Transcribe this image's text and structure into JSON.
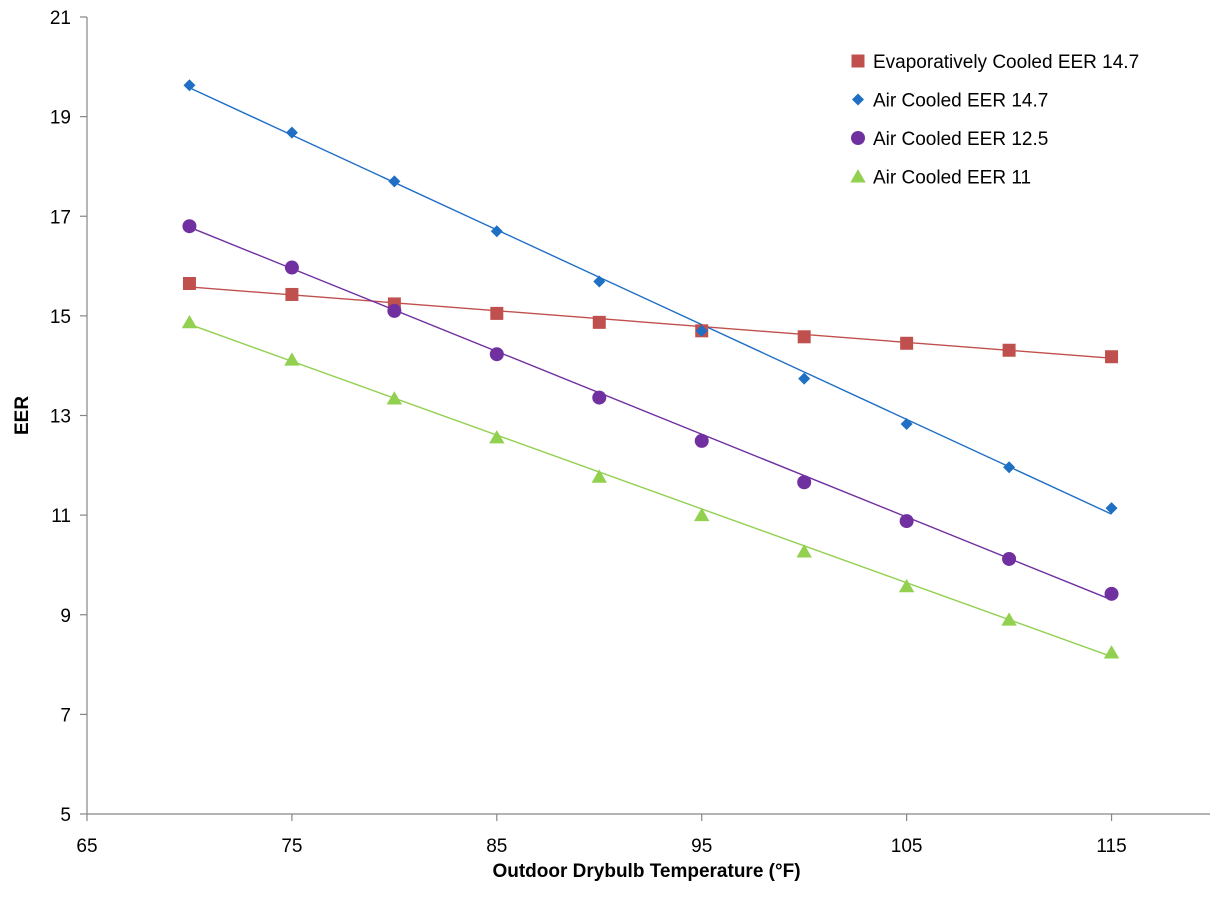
{
  "chart_data": {
    "type": "scatter",
    "title": "",
    "xlabel": "Outdoor Drybulb Temperature (°F)",
    "ylabel": "EER",
    "xlim": [
      65,
      120
    ],
    "ylim": [
      5,
      21
    ],
    "xticks": [
      65,
      75,
      85,
      95,
      105,
      115
    ],
    "yticks": [
      5,
      7,
      9,
      11,
      13,
      15,
      17,
      19,
      21
    ],
    "grid": false,
    "legend_position": "top-right",
    "series": [
      {
        "name": "Evaporatively Cooled EER 14.7",
        "marker": "square",
        "color": "#c0504d",
        "x": [
          70,
          75,
          80,
          85,
          90,
          95,
          100,
          105,
          110,
          115
        ],
        "y": [
          15.65,
          15.43,
          15.24,
          15.05,
          14.87,
          14.7,
          14.58,
          14.45,
          14.31,
          14.18
        ],
        "trendline": [
          [
            70,
            15.58
          ],
          [
            115,
            14.15
          ]
        ]
      },
      {
        "name": "Air Cooled EER 14.7",
        "marker": "diamond",
        "color": "#1f6fc5",
        "x": [
          70,
          75,
          80,
          85,
          90,
          95,
          100,
          105,
          110,
          115
        ],
        "y": [
          19.63,
          18.68,
          17.7,
          16.7,
          15.69,
          14.7,
          13.74,
          12.83,
          11.96,
          11.14
        ],
        "trendline": [
          [
            70,
            19.58
          ],
          [
            115,
            11.02
          ]
        ]
      },
      {
        "name": "Air Cooled EER 12.5",
        "marker": "circle",
        "color": "#7030a0",
        "x": [
          70,
          75,
          80,
          85,
          90,
          95,
          100,
          105,
          110,
          115
        ],
        "y": [
          16.8,
          15.97,
          15.1,
          14.23,
          13.36,
          12.49,
          11.66,
          10.88,
          10.12,
          9.42
        ],
        "trendline": [
          [
            70,
            16.78
          ],
          [
            115,
            9.3
          ]
        ]
      },
      {
        "name": "Air Cooled EER 11",
        "marker": "triangle",
        "color": "#92d050",
        "x": [
          70,
          75,
          80,
          85,
          90,
          95,
          100,
          105,
          110,
          115
        ],
        "y": [
          14.87,
          14.12,
          13.34,
          12.56,
          11.77,
          11.0,
          10.27,
          9.57,
          8.9,
          8.24
        ],
        "trendline": [
          [
            70,
            14.83
          ],
          [
            115,
            8.16
          ]
        ]
      }
    ]
  }
}
